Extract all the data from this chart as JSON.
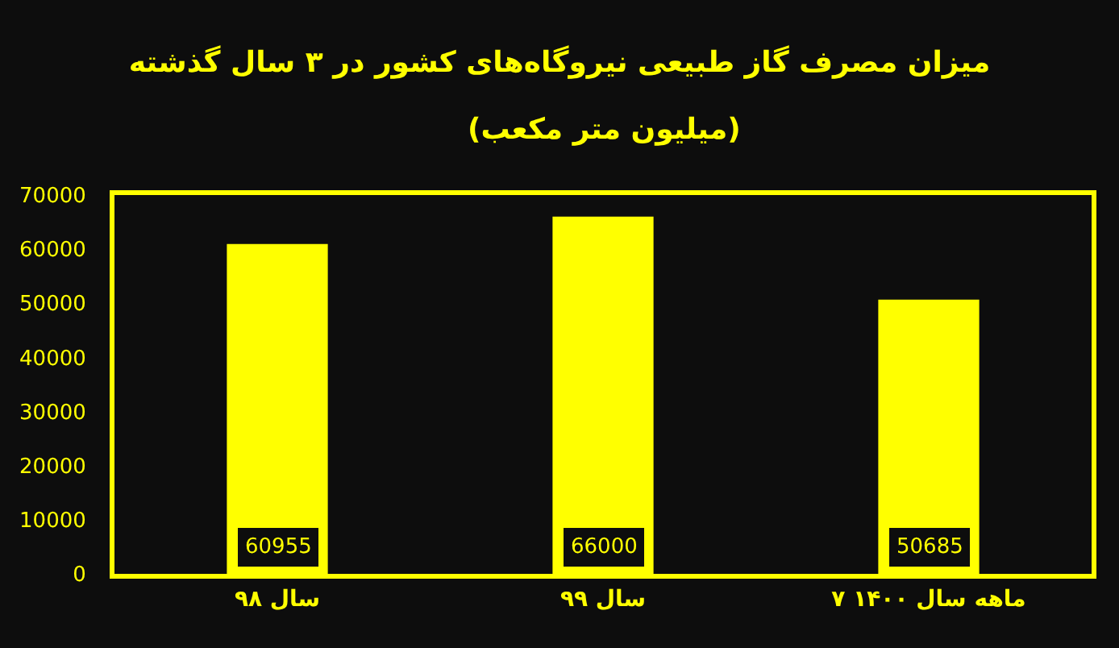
{
  "chart_data": {
    "type": "bar",
    "title": "میزان مصرف گاز طبیعی نیروگاه‌های کشور در ۳ سال گذشته",
    "subtitle": "(میلیون متر مکعب)",
    "categories": [
      "سال ۹۸",
      "سال ۹۹",
      "۷ ماهه سال ۱۴۰۰"
    ],
    "values": [
      60955,
      66000,
      50685
    ],
    "color": "#ffff00",
    "ylim": [
      0,
      70000
    ],
    "yticks": [
      0,
      10000,
      20000,
      30000,
      40000,
      50000,
      60000,
      70000
    ],
    "data_labels": true
  }
}
